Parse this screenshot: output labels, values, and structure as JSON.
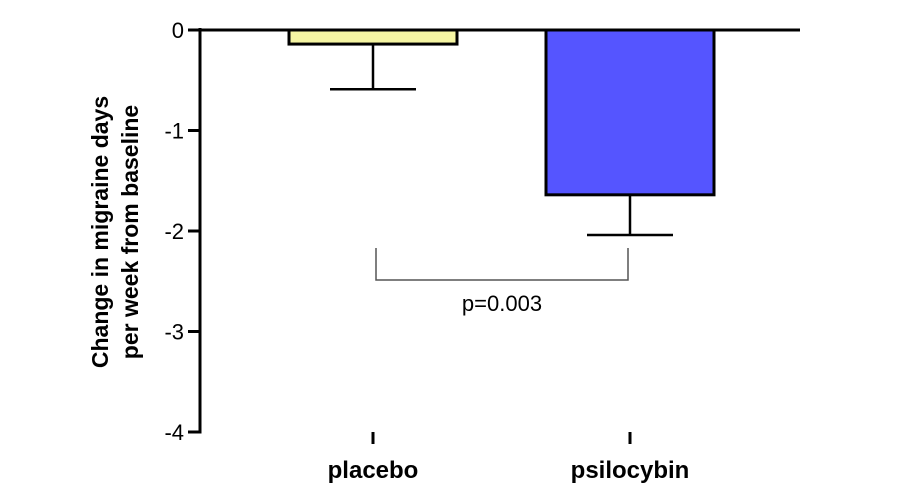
{
  "chart_data": {
    "type": "bar",
    "title": "",
    "ylabel_line1": "Change in migraine days",
    "ylabel_line2": "per week from baseline",
    "xlabel": "",
    "ylim": [
      -4,
      0
    ],
    "yticks": [
      "0",
      "-1",
      "-2",
      "-3",
      "-4"
    ],
    "ytick_values": [
      0,
      -1,
      -2,
      -3,
      -4
    ],
    "categories": [
      "placebo",
      "psilocybin"
    ],
    "values": [
      -0.14,
      -1.64
    ],
    "error": [
      0.45,
      0.4
    ],
    "bar_colors": [
      "#f5f5a3",
      "#5555ff"
    ],
    "grid": false,
    "annotation": {
      "text": "p=0.003",
      "between": [
        "placebo",
        "psilocybin"
      ]
    }
  }
}
